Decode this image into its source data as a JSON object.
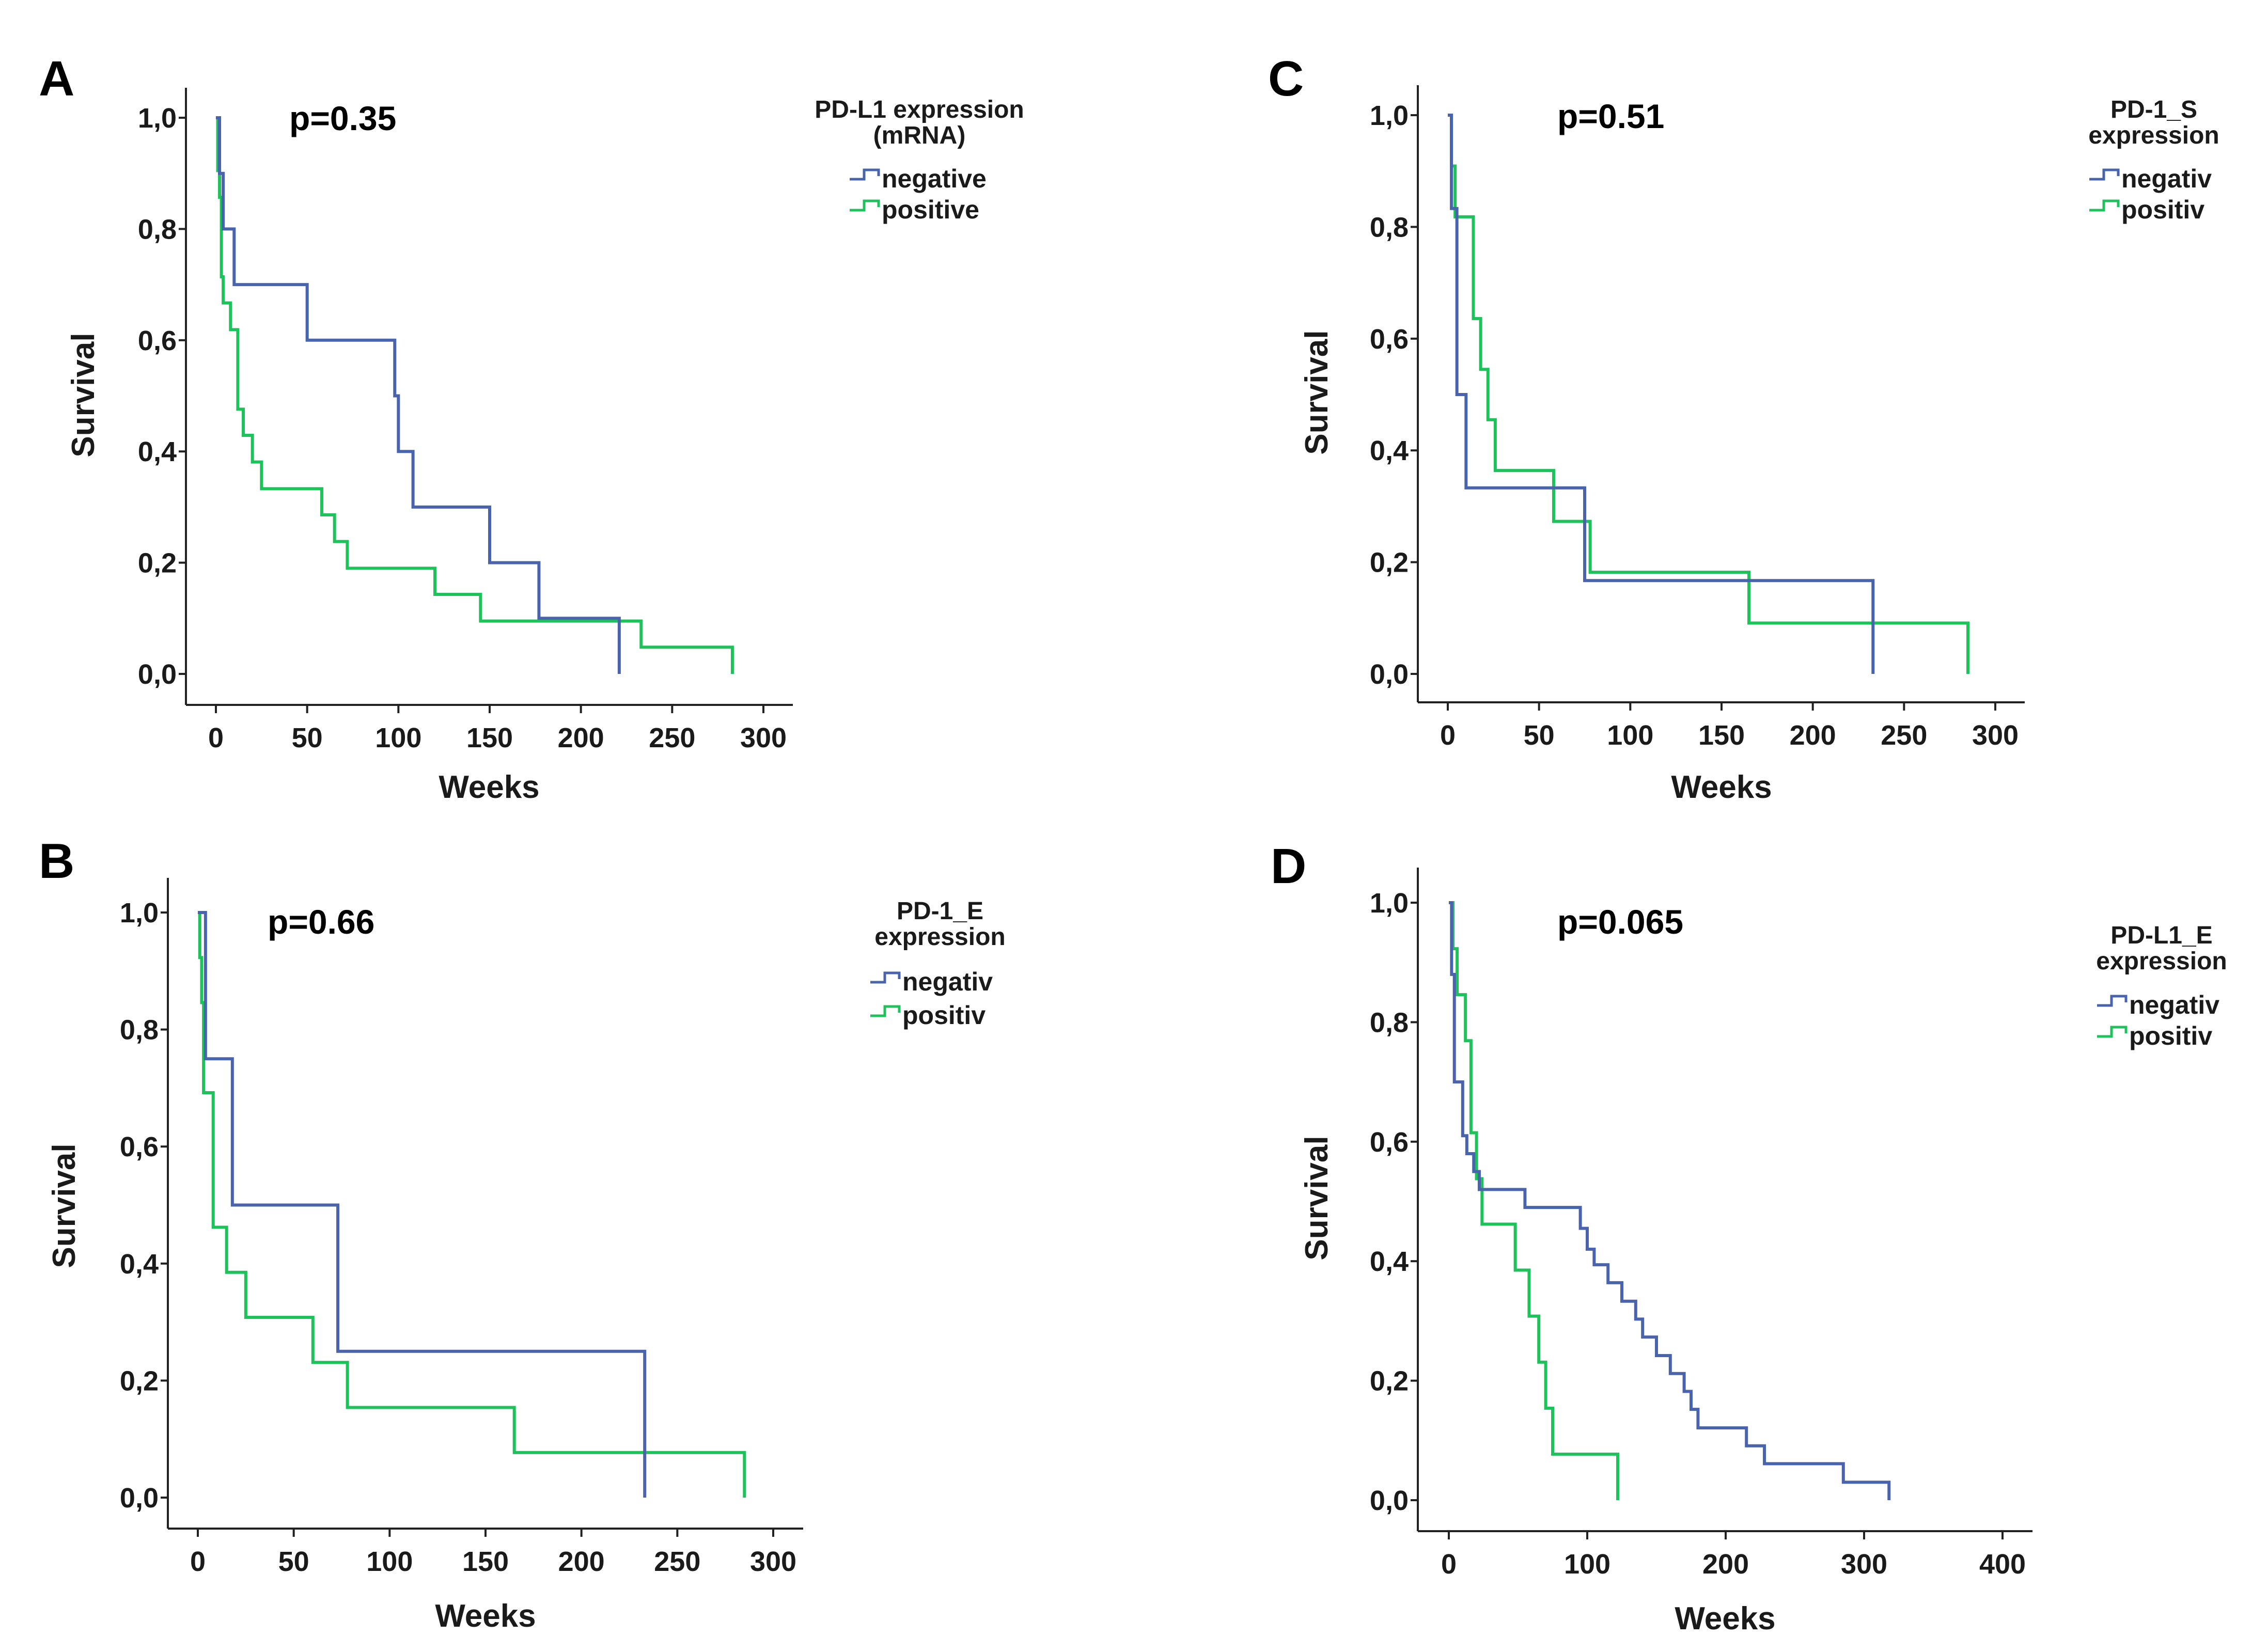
{
  "colors": {
    "negative": "#4a63ad",
    "positive": "#1ec25a"
  },
  "chart_data": [
    {
      "id": "A",
      "type": "line",
      "letter": "A",
      "pvalue": "p=0.35",
      "xlabel": "Weeks",
      "ylabel": "Survival",
      "xticks": [
        "0",
        "50",
        "100",
        "150",
        "200",
        "250",
        "300"
      ],
      "xtick_values": [
        0,
        50,
        100,
        150,
        200,
        250,
        300
      ],
      "yticks": [
        "0,0",
        "0,2",
        "0,4",
        "0,6",
        "0,8",
        "1,0"
      ],
      "ytick_values": [
        0,
        0.2,
        0.4,
        0.6,
        0.8,
        1.0
      ],
      "xlim": [
        -15,
        315
      ],
      "ylim": [
        -0.05,
        1.05
      ],
      "legend": {
        "title_lines": [
          "PD-L1 expression",
          "(mRNA)"
        ],
        "entries": [
          "negative",
          "positive"
        ],
        "position": "top-right"
      },
      "series": [
        {
          "name": "negative",
          "color_key": "negative",
          "times": [
            0,
            2,
            4,
            10,
            50,
            98,
            100,
            108,
            150,
            177,
            221
          ],
          "survival": [
            1.0,
            0.9,
            0.8,
            0.7,
            0.6,
            0.5,
            0.4,
            0.3,
            0.2,
            0.1,
            0.0
          ]
        },
        {
          "name": "positive",
          "color_key": "positive",
          "times": [
            0,
            1,
            2,
            3,
            4,
            8,
            12,
            15,
            20,
            25,
            58,
            65,
            72,
            120,
            145,
            233,
            283
          ],
          "survival": [
            1.0,
            0.905,
            0.857,
            0.714,
            0.667,
            0.619,
            0.476,
            0.429,
            0.381,
            0.333,
            0.286,
            0.238,
            0.19,
            0.143,
            0.095,
            0.048,
            0.0
          ]
        }
      ]
    },
    {
      "id": "B",
      "type": "line",
      "letter": "B",
      "pvalue": "p=0.66",
      "xlabel": "Weeks",
      "ylabel": "Survival",
      "xticks": [
        "0",
        "50",
        "100",
        "150",
        "200",
        "250",
        "300"
      ],
      "xtick_values": [
        0,
        50,
        100,
        150,
        200,
        250,
        300
      ],
      "yticks": [
        "0,0",
        "0,2",
        "0,4",
        "0,6",
        "0,8",
        "1,0"
      ],
      "ytick_values": [
        0,
        0.2,
        0.4,
        0.6,
        0.8,
        1.0
      ],
      "xlim": [
        -15,
        315
      ],
      "ylim": [
        -0.05,
        1.05
      ],
      "legend": {
        "title_lines": [
          "PD-1_E",
          "expression"
        ],
        "entries": [
          "negativ",
          "positiv"
        ],
        "position": "top-right"
      },
      "series": [
        {
          "name": "negativ",
          "color_key": "negative",
          "times": [
            0,
            4,
            18,
            73,
            233
          ],
          "survival": [
            1.0,
            0.75,
            0.5,
            0.25,
            0.0
          ]
        },
        {
          "name": "positiv",
          "color_key": "positive",
          "times": [
            0,
            1,
            2,
            3,
            8,
            15,
            25,
            60,
            78,
            165,
            285
          ],
          "survival": [
            1.0,
            0.923,
            0.846,
            0.692,
            0.462,
            0.385,
            0.308,
            0.231,
            0.154,
            0.077,
            0.0
          ]
        }
      ]
    },
    {
      "id": "C",
      "type": "line",
      "letter": "C",
      "pvalue": "p=0.51",
      "xlabel": "Weeks",
      "ylabel": "Survival",
      "xticks": [
        "0",
        "50",
        "100",
        "150",
        "200",
        "250",
        "300"
      ],
      "xtick_values": [
        0,
        50,
        100,
        150,
        200,
        250,
        300
      ],
      "yticks": [
        "0,0",
        "0,2",
        "0,4",
        "0,6",
        "0,8",
        "1,0"
      ],
      "ytick_values": [
        0,
        0.2,
        0.4,
        0.6,
        0.8,
        1.0
      ],
      "xlim": [
        -15,
        315
      ],
      "ylim": [
        -0.05,
        1.05
      ],
      "legend": {
        "title_lines": [
          "PD-1_S",
          "expression"
        ],
        "entries": [
          "negativ",
          "positiv"
        ],
        "position": "top-right"
      },
      "series": [
        {
          "name": "negativ",
          "color_key": "negative",
          "times": [
            0,
            2,
            5,
            10,
            75,
            233
          ],
          "survival": [
            1.0,
            0.833,
            0.5,
            0.333,
            0.167,
            0.0
          ]
        },
        {
          "name": "positiv",
          "color_key": "positive",
          "times": [
            0,
            2,
            4,
            8,
            14,
            18,
            22,
            26,
            58,
            78,
            165,
            285
          ],
          "survival": [
            1.0,
            0.909,
            0.818,
            0.818,
            0.636,
            0.545,
            0.455,
            0.364,
            0.273,
            0.182,
            0.091,
            0.0
          ]
        }
      ]
    },
    {
      "id": "D",
      "type": "line",
      "letter": "D",
      "pvalue": "p=0.065",
      "xlabel": "Weeks",
      "ylabel": "Survival",
      "xticks": [
        "0",
        "100",
        "200",
        "300",
        "400"
      ],
      "xtick_values": [
        0,
        100,
        200,
        300,
        400
      ],
      "yticks": [
        "0,0",
        "0,2",
        "0,4",
        "0,6",
        "0,8",
        "1,0"
      ],
      "ytick_values": [
        0,
        0.2,
        0.4,
        0.6,
        0.8,
        1.0
      ],
      "xlim": [
        -15,
        420
      ],
      "ylim": [
        -0.05,
        1.05
      ],
      "legend": {
        "title_lines": [
          "PD-L1_E",
          "expression"
        ],
        "entries": [
          "negativ",
          "positiv"
        ],
        "position": "top-right"
      },
      "series": [
        {
          "name": "negativ",
          "color_key": "negative",
          "times": [
            0,
            2,
            4,
            10,
            13,
            18,
            22,
            32,
            55,
            95,
            100,
            105,
            115,
            125,
            135,
            140,
            150,
            160,
            170,
            175,
            180,
            215,
            228,
            285,
            318
          ],
          "survival": [
            1.0,
            0.88,
            0.7,
            0.61,
            0.58,
            0.55,
            0.52,
            0.52,
            0.49,
            0.455,
            0.42,
            0.394,
            0.364,
            0.333,
            0.303,
            0.273,
            0.242,
            0.212,
            0.182,
            0.152,
            0.121,
            0.091,
            0.061,
            0.03,
            0.0
          ]
        },
        {
          "name": "positiv",
          "color_key": "positive",
          "times": [
            0,
            3,
            6,
            12,
            16,
            20,
            24,
            48,
            58,
            65,
            70,
            75,
            122
          ],
          "survival": [
            1.0,
            0.923,
            0.846,
            0.769,
            0.615,
            0.538,
            0.462,
            0.385,
            0.308,
            0.231,
            0.154,
            0.077,
            0.0
          ]
        }
      ]
    }
  ]
}
